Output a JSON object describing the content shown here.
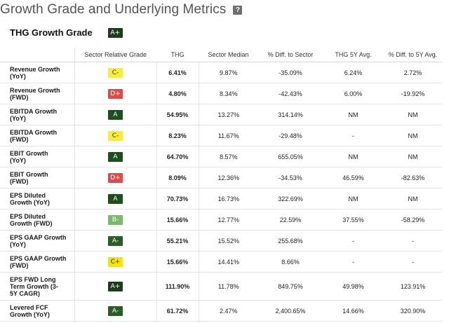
{
  "header": {
    "title": "Growth Grade and Underlying Metrics",
    "help": "?"
  },
  "grade": {
    "label": "THG Growth Grade",
    "value": "A+"
  },
  "columns": [
    "Sector Relative Grade",
    "THG",
    "Sector Median",
    "% Diff. to Sector",
    "THG 5Y Avg.",
    "% Diff. to 5Y Avg."
  ],
  "grade_colors": {
    "A+": {
      "bg": "#1b3d1b",
      "fg": "#ffffff"
    },
    "A": {
      "bg": "#1f4d1f",
      "fg": "#ffffff"
    },
    "A-": {
      "bg": "#2b5a2b",
      "fg": "#ffffff"
    },
    "B-": {
      "bg": "#7cb96a",
      "fg": "#ffffff"
    },
    "C+": {
      "bg": "#f2e21d",
      "fg": "#333333"
    },
    "C-": {
      "bg": "#f7ec45",
      "fg": "#333333"
    },
    "D+": {
      "bg": "#d64d4d",
      "fg": "#ffffff"
    }
  },
  "rows": [
    {
      "metric": [
        "Revenue Growth",
        "(YoY)"
      ],
      "grade": "C-",
      "thg": "6.41%",
      "median": "9.87%",
      "diff": "-35.09%",
      "avg5y": "6.24%",
      "diff5y": "2.72%"
    },
    {
      "metric": [
        "Revenue Growth",
        "(FWD)"
      ],
      "grade": "D+",
      "thg": "4.80%",
      "median": "8.34%",
      "diff": "-42.43%",
      "avg5y": "6.00%",
      "diff5y": "-19.92%"
    },
    {
      "metric": [
        "EBITDA Growth",
        "(YoY)"
      ],
      "grade": "A",
      "thg": "54.95%",
      "median": "13.27%",
      "diff": "314.14%",
      "avg5y": "NM",
      "diff5y": "NM"
    },
    {
      "metric": [
        "EBITDA Growth",
        "(FWD)"
      ],
      "grade": "C-",
      "thg": "8.23%",
      "median": "11.67%",
      "diff": "-29.48%",
      "avg5y": "-",
      "diff5y": "NM"
    },
    {
      "metric": [
        "EBIT Growth",
        "(YoY)"
      ],
      "grade": "A",
      "thg": "64.70%",
      "median": "8.57%",
      "diff": "655.05%",
      "avg5y": "NM",
      "diff5y": "NM"
    },
    {
      "metric": [
        "EBIT Growth",
        "(FWD)"
      ],
      "grade": "D+",
      "thg": "8.09%",
      "median": "12.36%",
      "diff": "-34.53%",
      "avg5y": "46.59%",
      "diff5y": "-82.63%"
    },
    {
      "metric": [
        "EPS Diluted",
        "Growth (YoY)"
      ],
      "grade": "A",
      "thg": "70.73%",
      "median": "16.73%",
      "diff": "322.69%",
      "avg5y": "NM",
      "diff5y": "NM"
    },
    {
      "metric": [
        "EPS Diluted",
        "Growth (FWD)"
      ],
      "grade": "B-",
      "thg": "15.66%",
      "median": "12.77%",
      "diff": "22.59%",
      "avg5y": "37.55%",
      "diff5y": "-58.29%"
    },
    {
      "metric": [
        "EPS GAAP Growth",
        "(YoY)"
      ],
      "grade": "A-",
      "thg": "55.21%",
      "median": "15.52%",
      "diff": "255.68%",
      "avg5y": "-",
      "diff5y": "-"
    },
    {
      "metric": [
        "EPS GAAP Growth",
        "(FWD)"
      ],
      "grade": "C+",
      "thg": "15.66%",
      "median": "14.41%",
      "diff": "8.66%",
      "avg5y": "-",
      "diff5y": "-"
    },
    {
      "metric": [
        "EPS FWD Long",
        "Term Growth (3-",
        "5Y CAGR)"
      ],
      "grade": "A+",
      "thg": "111.90%",
      "median": "11.78%",
      "diff": "849.75%",
      "avg5y": "49.98%",
      "diff5y": "123.91%"
    },
    {
      "metric": [
        "Levered FCF",
        "Growth (YoY)"
      ],
      "grade": "A-",
      "thg": "61.72%",
      "median": "2.47%",
      "diff": "2,400.65%",
      "avg5y": "14.66%",
      "diff5y": "320.90%"
    }
  ]
}
